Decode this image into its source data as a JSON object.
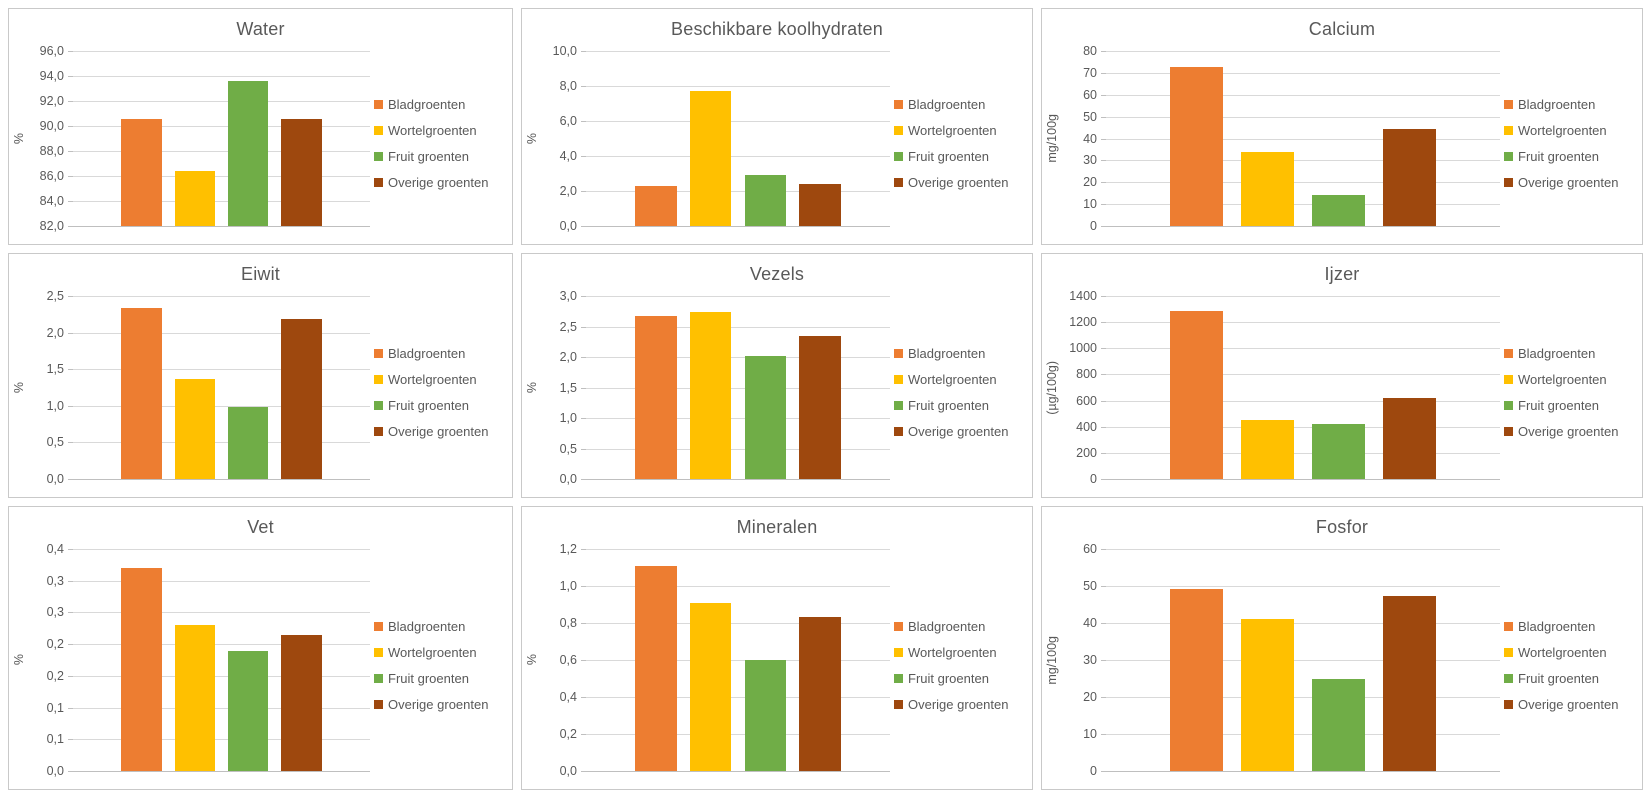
{
  "legend": {
    "position": "right",
    "items": [
      {
        "label": "Bladgroenten",
        "color": "#ED7D31"
      },
      {
        "label": "Wortelgroenten",
        "color": "#FFC000"
      },
      {
        "label": "Fruit groenten",
        "color": "#70AD47"
      },
      {
        "label": "Overige groenten",
        "color": "#9E480E"
      }
    ]
  },
  "style": {
    "title_color": "#595959",
    "tick_color": "#595959",
    "gridline_color": "#D9D9D9",
    "card_border_color": "#C9C9C9"
  },
  "chart_data": [
    {
      "type": "bar",
      "title": "Water",
      "xlabel": "",
      "ylabel": "%",
      "categories": [
        "Bladgroenten",
        "Wortelgroenten",
        "Fruit groenten",
        "Overige groenten"
      ],
      "values": [
        90.6,
        86.4,
        93.6,
        90.6
      ],
      "ylim": [
        82.0,
        96.0
      ],
      "ytick_step": 2.0,
      "grid": true,
      "legend_position": "right",
      "ticks": [
        "96,0",
        "94,0",
        "92,0",
        "90,0",
        "88,0",
        "86,0",
        "84,0",
        "82,0"
      ]
    },
    {
      "type": "bar",
      "title": "Beschikbare koolhydraten",
      "xlabel": "",
      "ylabel": "%",
      "categories": [
        "Bladgroenten",
        "Wortelgroenten",
        "Fruit groenten",
        "Overige groenten"
      ],
      "values": [
        2.3,
        7.7,
        2.9,
        2.4
      ],
      "ylim": [
        0.0,
        10.0
      ],
      "ytick_step": 2.0,
      "grid": true,
      "legend_position": "right",
      "ticks": [
        "10,0",
        "8,0",
        "6,0",
        "4,0",
        "2,0",
        "0,0"
      ]
    },
    {
      "type": "bar",
      "title": "Calcium",
      "xlabel": "",
      "ylabel": "mg/100g",
      "categories": [
        "Bladgroenten",
        "Wortelgroenten",
        "Fruit groenten",
        "Overige groenten"
      ],
      "values": [
        72.5,
        34.0,
        14.0,
        44.5
      ],
      "ylim": [
        0,
        80
      ],
      "ytick_step": 10,
      "grid": true,
      "legend_position": "right",
      "ticks": [
        "80",
        "70",
        "60",
        "50",
        "40",
        "30",
        "20",
        "10",
        "0"
      ]
    },
    {
      "type": "bar",
      "title": "Eiwit",
      "xlabel": "",
      "ylabel": "%",
      "categories": [
        "Bladgroenten",
        "Wortelgroenten",
        "Fruit groenten",
        "Overige groenten"
      ],
      "values": [
        2.34,
        1.37,
        0.99,
        2.19
      ],
      "ylim": [
        0.0,
        2.5
      ],
      "ytick_step": 0.5,
      "grid": true,
      "legend_position": "right",
      "ticks": [
        "2,5",
        "2,0",
        "1,5",
        "1,0",
        "0,5",
        "0,0"
      ]
    },
    {
      "type": "bar",
      "title": "Vezels",
      "xlabel": "",
      "ylabel": "%",
      "categories": [
        "Bladgroenten",
        "Wortelgroenten",
        "Fruit groenten",
        "Overige groenten"
      ],
      "values": [
        2.68,
        2.73,
        2.01,
        2.35
      ],
      "ylim": [
        0.0,
        3.0
      ],
      "ytick_step": 0.5,
      "grid": true,
      "legend_position": "right",
      "ticks": [
        "3,0",
        "2,5",
        "2,0",
        "1,5",
        "1,0",
        "0,5",
        "0,0"
      ]
    },
    {
      "type": "bar",
      "title": "Ijzer",
      "xlabel": "",
      "ylabel": "(µg/100g)",
      "categories": [
        "Bladgroenten",
        "Wortelgroenten",
        "Fruit groenten",
        "Overige groenten"
      ],
      "values": [
        1285,
        455,
        420,
        620
      ],
      "ylim": [
        0,
        1400
      ],
      "ytick_step": 200,
      "grid": true,
      "legend_position": "right",
      "ticks": [
        "1400",
        "1200",
        "1000",
        "800",
        "600",
        "400",
        "200",
        "0"
      ]
    },
    {
      "type": "bar",
      "title": "Vet",
      "xlabel": "",
      "ylabel": "%",
      "categories": [
        "Bladgroenten",
        "Wortelgroenten",
        "Fruit groenten",
        "Overige groenten"
      ],
      "values": [
        0.32,
        0.23,
        0.19,
        0.215
      ],
      "ylim": [
        0.0,
        0.35
      ],
      "ytick_step": 0.05,
      "grid": true,
      "legend_position": "right",
      "ticks": [
        "0,4",
        "0,3",
        "0,3",
        "0,2",
        "0,2",
        "0,1",
        "0,1",
        "0,0"
      ]
    },
    {
      "type": "bar",
      "title": "Mineralen",
      "xlabel": "",
      "ylabel": "%",
      "categories": [
        "Bladgroenten",
        "Wortelgroenten",
        "Fruit groenten",
        "Overige groenten"
      ],
      "values": [
        1.11,
        0.91,
        0.6,
        0.83
      ],
      "ylim": [
        0.0,
        1.2
      ],
      "ytick_step": 0.2,
      "grid": true,
      "legend_position": "right",
      "ticks": [
        "1,2",
        "1,0",
        "0,8",
        "0,6",
        "0,4",
        "0,2",
        "0,0"
      ]
    },
    {
      "type": "bar",
      "title": "Fosfor",
      "xlabel": "",
      "ylabel": "mg/100g",
      "categories": [
        "Bladgroenten",
        "Wortelgroenten",
        "Fruit groenten",
        "Overige groenten"
      ],
      "values": [
        49.3,
        41.0,
        24.8,
        47.3
      ],
      "ylim": [
        0,
        60
      ],
      "ytick_step": 10,
      "grid": true,
      "legend_position": "right",
      "ticks": [
        "60",
        "50",
        "40",
        "30",
        "20",
        "10",
        "0"
      ]
    }
  ]
}
